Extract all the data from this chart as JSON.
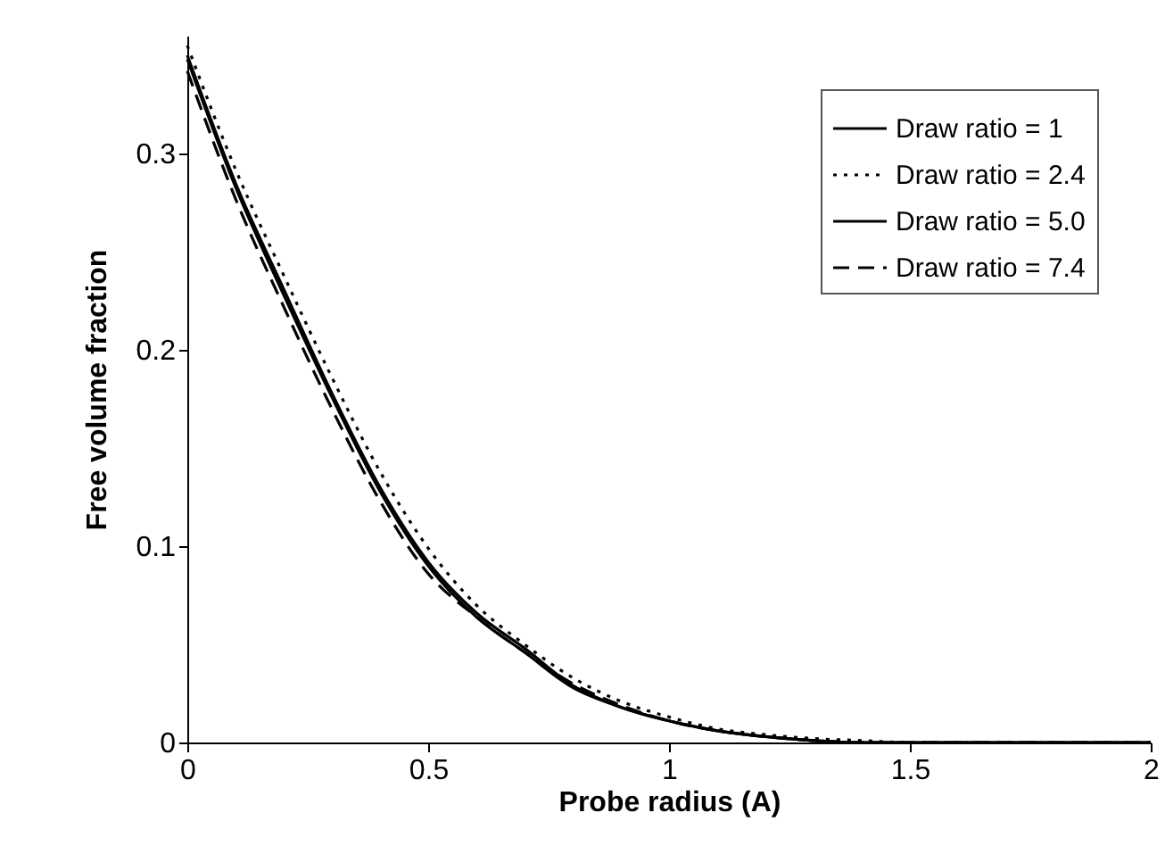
{
  "chart_data": {
    "type": "line",
    "xlabel": "Probe radius (A)",
    "ylabel": "Free volume fraction",
    "x": [
      0,
      0.1,
      0.2,
      0.3,
      0.4,
      0.5,
      0.6,
      0.7,
      0.8,
      0.9,
      1,
      1.1,
      1.2,
      1.3,
      1.4,
      1.5,
      2
    ],
    "xlim": [
      0,
      2
    ],
    "xticks": [
      0,
      0.5,
      1,
      1.5,
      2
    ],
    "ylim": [
      0,
      0.36
    ],
    "yticks": [
      0,
      0.1,
      0.2,
      0.3
    ],
    "grid": false,
    "legend": "top right",
    "series": [
      {
        "name": "Draw ratio = 1",
        "color": "#000000",
        "line_style": "solid",
        "values": [
          0.35,
          0.285,
          0.231,
          0.178,
          0.13,
          0.092,
          0.066,
          0.048,
          0.029,
          0.018,
          0.011,
          0.006,
          0.003,
          0.001,
          0,
          0,
          0
        ]
      },
      {
        "name": "Draw ratio = 2.4",
        "color": "#000000",
        "line_style": "dotted",
        "values": [
          0.355,
          0.292,
          0.238,
          0.186,
          0.138,
          0.099,
          0.07,
          0.05,
          0.033,
          0.021,
          0.013,
          0.007,
          0.004,
          0.002,
          0.001,
          0,
          0
        ]
      },
      {
        "name": "Draw ratio = 5.0",
        "color": "#000000",
        "line_style": "solid",
        "values": [
          0.348,
          0.283,
          0.228,
          0.176,
          0.128,
          0.09,
          0.064,
          0.046,
          0.028,
          0.018,
          0.011,
          0.006,
          0.003,
          0.001,
          0,
          0,
          0
        ]
      },
      {
        "name": "Draw ratio = 7.4",
        "color": "#000000",
        "line_style": "dashed",
        "values": [
          0.342,
          0.277,
          0.222,
          0.17,
          0.123,
          0.086,
          0.064,
          0.046,
          0.03,
          0.019,
          0.011,
          0.006,
          0.003,
          0.001,
          0,
          0,
          0
        ]
      }
    ]
  }
}
